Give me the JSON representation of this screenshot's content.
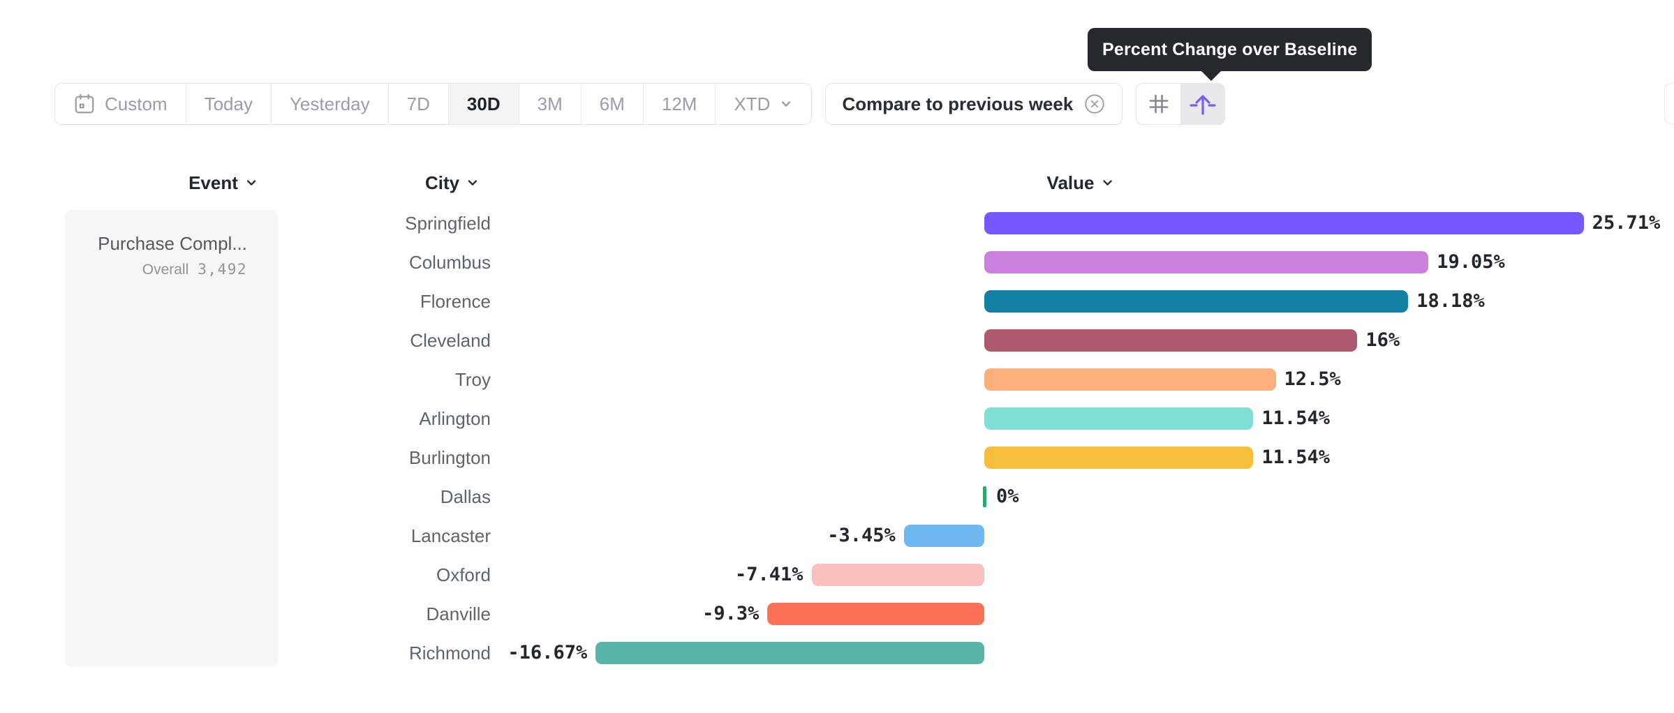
{
  "tooltip": {
    "text": "Percent Change over Baseline"
  },
  "toolbar": {
    "date_ranges": [
      {
        "label": "Custom",
        "icon": "calendar-icon",
        "selected": false
      },
      {
        "label": "Today",
        "selected": false
      },
      {
        "label": "Yesterday",
        "selected": false
      },
      {
        "label": "7D",
        "selected": false
      },
      {
        "label": "30D",
        "selected": true
      },
      {
        "label": "3M",
        "selected": false
      },
      {
        "label": "6M",
        "selected": false
      },
      {
        "label": "12M",
        "selected": false
      },
      {
        "label": "XTD",
        "chevron": true,
        "selected": false
      }
    ],
    "compare_pill": {
      "label": "Compare to previous week",
      "clear_icon": "circle-x-icon"
    },
    "view_toggles": [
      {
        "name": "number-format",
        "icon": "hash-grid-icon",
        "active": false
      },
      {
        "name": "percent-change-over-baseline",
        "icon": "arrow-up-from-baseline-icon",
        "active": true
      }
    ]
  },
  "columns": [
    {
      "label": "Event",
      "icon": "chevron-down-icon"
    },
    {
      "label": "City",
      "icon": "chevron-down-icon"
    },
    {
      "label": "Value",
      "icon": "chevron-down-icon"
    }
  ],
  "event_panel": {
    "event_name": "Purchase Compl...",
    "segment_label": "Overall",
    "segment_value": "3,492"
  },
  "chart_data": {
    "type": "bar",
    "orientation": "horizontal",
    "title": "Percent Change over Baseline",
    "value_unit": "%",
    "baseline": 0,
    "xlim": [
      -16.67,
      25.71
    ],
    "grid": false,
    "legend": "none",
    "categories": [
      "Springfield",
      "Columbus",
      "Florence",
      "Cleveland",
      "Troy",
      "Arlington",
      "Burlington",
      "Dallas",
      "Lancaster",
      "Oxford",
      "Danville",
      "Richmond"
    ],
    "values": [
      25.71,
      19.05,
      18.18,
      16,
      12.5,
      11.54,
      11.54,
      0,
      -3.45,
      -7.41,
      -9.3,
      -16.67
    ],
    "labels": [
      "25.71%",
      "19.05%",
      "18.18%",
      "16%",
      "12.5%",
      "11.54%",
      "11.54%",
      "0%",
      "-3.45%",
      "-7.41%",
      "-9.3%",
      "-16.67%"
    ],
    "colors": [
      "#7957FF",
      "#CA80DC",
      "#1380A3",
      "#B05A70",
      "#FDAF7B",
      "#7FDED6",
      "#F6BE3B",
      "#2EA56F",
      "#6FB9F0",
      "#FBC0BB",
      "#FB7157",
      "#56B4A9"
    ]
  },
  "ui_colors": {
    "accent_purple": "#7B5CF7",
    "tooltip_bg": "#26282D",
    "border": "#E4E5E8",
    "muted_text": "#9A9DA3",
    "dark_text": "#23262B",
    "panel_bg": "#F6F6F7",
    "selected_bg": "#F4F4F5",
    "zero_tick_green": "#2EA56F"
  }
}
